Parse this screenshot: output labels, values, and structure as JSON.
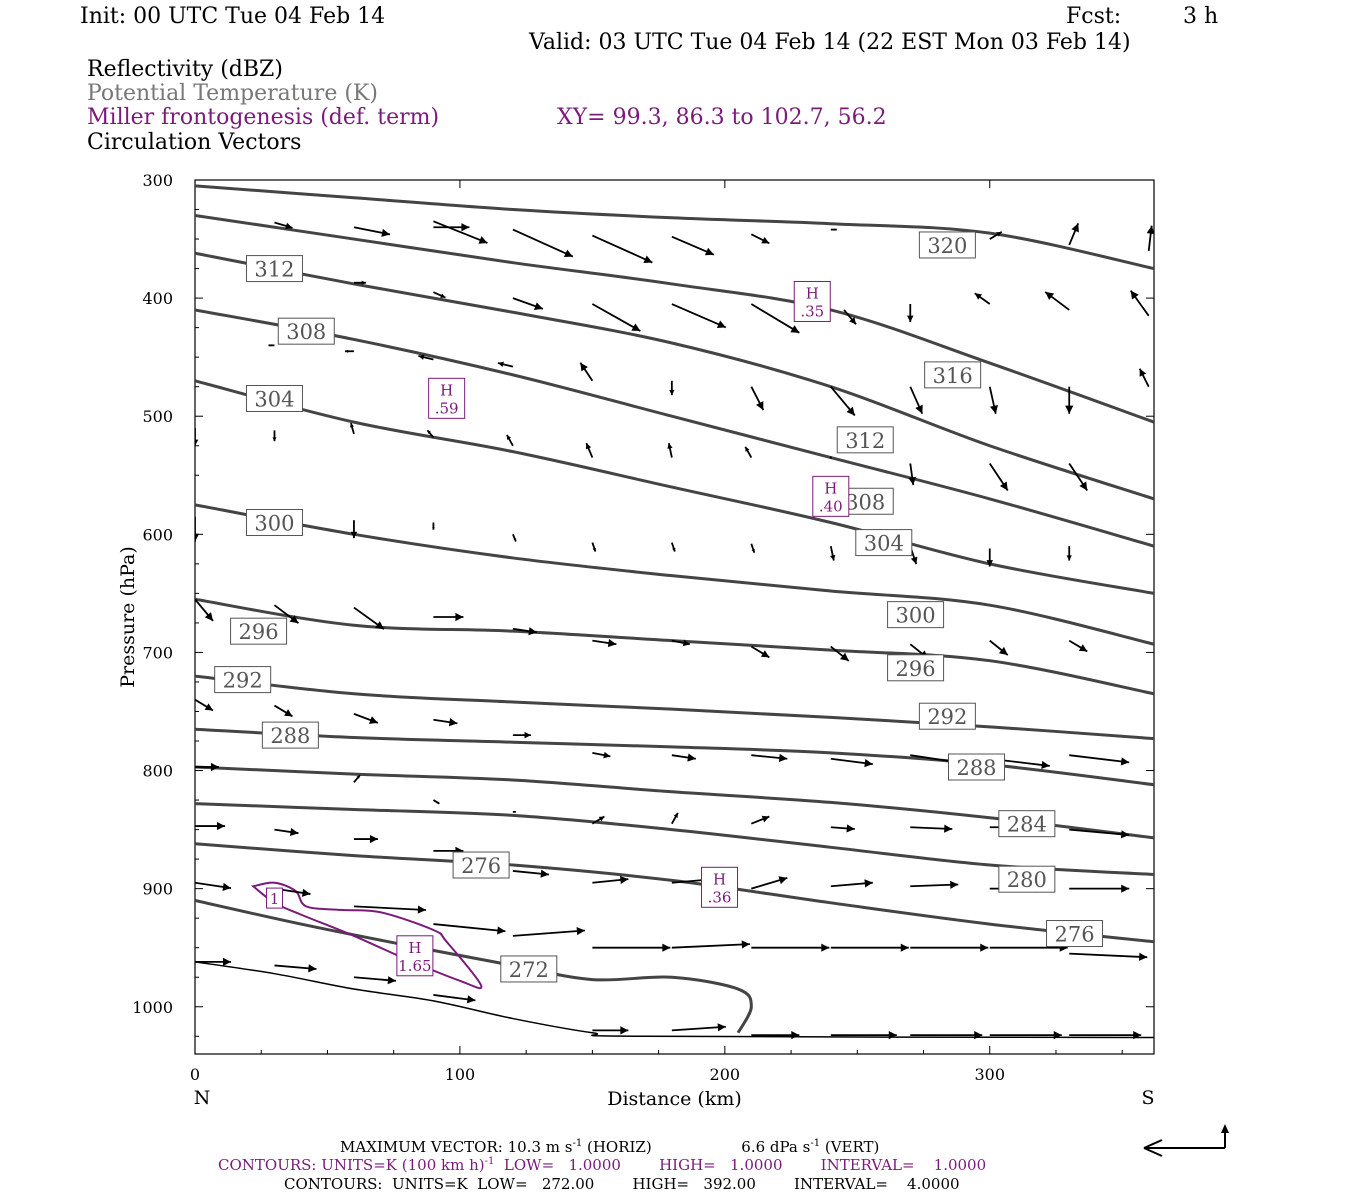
{
  "header": {
    "init": "Init: 00 UTC Tue 04 Feb 14",
    "fcst_label": "Fcst:",
    "fcst_value": "3 h",
    "valid": "Valid: 03 UTC Tue 04 Feb 14 (22 EST Mon 03 Feb 14)"
  },
  "fields": {
    "reflectivity": "Reflectivity (dBZ)",
    "theta": "Potential Temperature (K)",
    "frontogenesis": "Miller frontogenesis (def. term)",
    "xy": "XY=  99.3, 86.3 to 102.7, 56.2",
    "vectors": "Circulation Vectors"
  },
  "colors": {
    "theta": "#444444",
    "frontogenesis": "#7a1a7a",
    "vectors": "#000000",
    "theta_label": "#555555"
  },
  "footer": {
    "max_vector": "MAXIMUM VECTOR:  10.3 m s",
    "max_vector_h": " (HORIZ)",
    "max_vector_v": "6.6 dPa s",
    "max_vector_v2": " (VERT)",
    "contours1": "CONTOURS:  UNITS=K (100 km h)",
    "contours1b": "  LOW=   1.0000        HIGH=   1.0000        INTERVAL=    1.0000",
    "contours2": "CONTOURS:  UNITS=K  LOW=   272.00        HIGH=   392.00        INTERVAL=    4.0000",
    "sup": "-1"
  },
  "chart_data": {
    "type": "cross-section",
    "xlabel": "Distance (km)",
    "ylabel": "Pressure (hPa)",
    "xlim": [
      0,
      362
    ],
    "ylim": [
      1040,
      300
    ],
    "x_ticks": [
      0,
      100,
      200,
      300
    ],
    "y_ticks": [
      300,
      400,
      500,
      600,
      700,
      800,
      900,
      1000
    ],
    "left_end_label": "N",
    "right_end_label": "S",
    "theta_contours": [
      {
        "x": [
          0,
          60,
          120,
          180,
          240,
          300,
          362
        ],
        "p": [
          305,
          315,
          325,
          332,
          337,
          345,
          375
        ]
      },
      {
        "x": [
          0,
          60,
          120,
          180,
          240,
          300,
          362
        ],
        "p": [
          330,
          350,
          370,
          388,
          410,
          455,
          505
        ]
      },
      {
        "x": [
          0,
          60,
          120,
          180,
          240,
          300,
          362
        ],
        "p": [
          362,
          388,
          412,
          438,
          475,
          525,
          570
        ]
      },
      {
        "x": [
          0,
          60,
          120,
          180,
          240,
          300,
          362
        ],
        "p": [
          410,
          435,
          465,
          500,
          535,
          570,
          610
        ]
      },
      {
        "x": [
          0,
          60,
          120,
          180,
          240,
          300,
          362
        ],
        "p": [
          470,
          505,
          530,
          560,
          590,
          625,
          650
        ]
      },
      {
        "x": [
          0,
          60,
          120,
          180,
          240,
          300,
          362
        ],
        "p": [
          575,
          600,
          620,
          635,
          648,
          660,
          693
        ]
      },
      {
        "x": [
          0,
          60,
          120,
          180,
          240,
          300,
          362
        ],
        "p": [
          655,
          677,
          682,
          690,
          698,
          707,
          735
        ]
      },
      {
        "x": [
          0,
          60,
          120,
          180,
          240,
          300,
          362
        ],
        "p": [
          720,
          735,
          742,
          748,
          755,
          763,
          773
        ]
      },
      {
        "x": [
          0,
          60,
          120,
          180,
          240,
          300,
          362
        ],
        "p": [
          765,
          772,
          776,
          780,
          785,
          795,
          812
        ]
      },
      {
        "x": [
          0,
          60,
          120,
          180,
          240,
          300,
          362
        ],
        "p": [
          797,
          803,
          808,
          818,
          827,
          840,
          857
        ]
      },
      {
        "x": [
          0,
          60,
          120,
          180,
          240,
          300,
          362
        ],
        "p": [
          828,
          833,
          838,
          850,
          865,
          880,
          888
        ]
      },
      {
        "x": [
          0,
          60,
          120,
          180,
          240,
          300,
          362
        ],
        "p": [
          862,
          872,
          880,
          893,
          912,
          930,
          945
        ]
      },
      {
        "x": [
          0,
          40,
          80,
          120,
          150,
          180,
          205,
          210,
          205
        ],
        "p": [
          910,
          930,
          948,
          965,
          977,
          975,
          985,
          1000,
          1022
        ]
      }
    ],
    "theta_labels": [
      {
        "x": 284,
        "p": 355,
        "text": "320"
      },
      {
        "x": 30,
        "p": 375,
        "text": "312"
      },
      {
        "x": 286,
        "p": 465,
        "text": "316"
      },
      {
        "x": 42,
        "p": 428,
        "text": "308"
      },
      {
        "x": 30,
        "p": 485,
        "text": "304"
      },
      {
        "x": 253,
        "p": 520,
        "text": "312"
      },
      {
        "x": 253,
        "p": 572,
        "text": "308"
      },
      {
        "x": 30,
        "p": 590,
        "text": "300"
      },
      {
        "x": 260,
        "p": 607,
        "text": "304"
      },
      {
        "x": 272,
        "p": 668,
        "text": "300"
      },
      {
        "x": 24,
        "p": 682,
        "text": "296"
      },
      {
        "x": 272,
        "p": 713,
        "text": "296"
      },
      {
        "x": 18,
        "p": 723,
        "text": "292"
      },
      {
        "x": 284,
        "p": 754,
        "text": "292"
      },
      {
        "x": 36,
        "p": 770,
        "text": "288"
      },
      {
        "x": 295,
        "p": 797,
        "text": "288"
      },
      {
        "x": 314,
        "p": 845,
        "text": "284"
      },
      {
        "x": 108,
        "p": 880,
        "text": "276"
      },
      {
        "x": 314,
        "p": 892,
        "text": "280"
      },
      {
        "x": 332,
        "p": 938,
        "text": "276"
      },
      {
        "x": 126,
        "p": 968,
        "text": "272"
      }
    ],
    "frontogenesis_highs": [
      {
        "x": 233,
        "p": 402,
        "label": "H",
        "value": ".35"
      },
      {
        "x": 95,
        "p": 484,
        "label": "H",
        "value": ".59"
      },
      {
        "x": 240,
        "p": 567,
        "label": "H",
        "value": ".40"
      },
      {
        "x": 198,
        "p": 898,
        "label": "H",
        "value": ".36"
      },
      {
        "x": 83,
        "p": 956,
        "label": "H",
        "value": "1.65"
      }
    ],
    "frontogenesis_contour": {
      "x": [
        22,
        30,
        38,
        42,
        55,
        70,
        90,
        95,
        108,
        100,
        80,
        60,
        40,
        30,
        22
      ],
      "p": [
        898,
        895,
        902,
        915,
        918,
        920,
        935,
        945,
        982,
        978,
        960,
        940,
        922,
        912,
        898
      ],
      "label": "1",
      "label_x": 30,
      "label_p": 908
    },
    "surface": {
      "x": [
        0,
        30,
        60,
        90,
        120,
        150,
        170,
        362
      ],
      "p": [
        962,
        972,
        985,
        995,
        1010,
        1022,
        1025,
        1026
      ]
    },
    "vectors": [
      {
        "x": 30,
        "p": 336,
        "u": 6,
        "w": 0.3
      },
      {
        "x": 60,
        "p": 340,
        "u": 12,
        "w": 0.4
      },
      {
        "x": 90,
        "p": 340,
        "u": 12,
        "w": 0.0
      },
      {
        "x": 90,
        "p": 335,
        "u": 18,
        "w": 1.2
      },
      {
        "x": 120,
        "p": 342,
        "u": 20,
        "w": 1.5
      },
      {
        "x": 150,
        "p": 347,
        "u": 20,
        "w": 1.5
      },
      {
        "x": 180,
        "p": 348,
        "u": 14,
        "w": 1.0
      },
      {
        "x": 210,
        "p": 346,
        "u": 6,
        "w": 0.5
      },
      {
        "x": 240,
        "p": 342,
        "u": 2,
        "w": 0.0
      },
      {
        "x": 300,
        "p": 350,
        "u": 4,
        "w": -0.4
      },
      {
        "x": 330,
        "p": 355,
        "u": 3,
        "w": -1.2
      },
      {
        "x": 360,
        "p": 360,
        "u": 1,
        "w": -1.4
      },
      {
        "x": 30,
        "p": 385,
        "u": 2,
        "w": 0.0
      },
      {
        "x": 60,
        "p": 387,
        "u": 4,
        "w": 0.0
      },
      {
        "x": 90,
        "p": 395,
        "u": 4,
        "w": 0.3
      },
      {
        "x": 120,
        "p": 400,
        "u": 10,
        "w": 0.6
      },
      {
        "x": 150,
        "p": 405,
        "u": 16,
        "w": 1.5
      },
      {
        "x": 180,
        "p": 405,
        "u": 18,
        "w": 1.3
      },
      {
        "x": 210,
        "p": 405,
        "u": 16,
        "w": 1.6
      },
      {
        "x": 245,
        "p": 410,
        "u": 4,
        "w": 0.8
      },
      {
        "x": 270,
        "p": 405,
        "u": 0,
        "w": 1.0
      },
      {
        "x": 300,
        "p": 405,
        "u": -5,
        "w": -0.6
      },
      {
        "x": 330,
        "p": 410,
        "u": -8,
        "w": -1.0
      },
      {
        "x": 360,
        "p": 415,
        "u": -6,
        "w": -1.4
      },
      {
        "x": 30,
        "p": 440,
        "u": -2,
        "w": 0.0
      },
      {
        "x": 60,
        "p": 445,
        "u": -3,
        "w": 0.0
      },
      {
        "x": 90,
        "p": 452,
        "u": -5,
        "w": -0.2
      },
      {
        "x": 120,
        "p": 458,
        "u": -5,
        "w": -0.2
      },
      {
        "x": 150,
        "p": 470,
        "u": -4,
        "w": -1.0
      },
      {
        "x": 180,
        "p": 470,
        "u": 0,
        "w": 0.8
      },
      {
        "x": 210,
        "p": 475,
        "u": 4,
        "w": 1.3
      },
      {
        "x": 240,
        "p": 475,
        "u": 8,
        "w": 1.6
      },
      {
        "x": 270,
        "p": 475,
        "u": 4,
        "w": 1.5
      },
      {
        "x": 300,
        "p": 475,
        "u": 2,
        "w": 1.5
      },
      {
        "x": 330,
        "p": 475,
        "u": 0,
        "w": 1.5
      },
      {
        "x": 360,
        "p": 475,
        "u": -3,
        "w": -1.0
      },
      {
        "x": 0,
        "p": 510,
        "u": 0,
        "w": 1.0
      },
      {
        "x": 30,
        "p": 512,
        "u": 0,
        "w": 0.6
      },
      {
        "x": 60,
        "p": 515,
        "u": -1,
        "w": -0.6
      },
      {
        "x": 90,
        "p": 518,
        "u": -2,
        "w": -0.4
      },
      {
        "x": 120,
        "p": 525,
        "u": -2,
        "w": -0.6
      },
      {
        "x": 150,
        "p": 535,
        "u": -2,
        "w": -0.8
      },
      {
        "x": 180,
        "p": 535,
        "u": -1,
        "w": -0.8
      },
      {
        "x": 210,
        "p": 535,
        "u": -2,
        "w": -0.6
      },
      {
        "x": 240,
        "p": 535,
        "u": 0,
        "w": 0.0
      },
      {
        "x": 270,
        "p": 540,
        "u": 1,
        "w": 1.2
      },
      {
        "x": 300,
        "p": 540,
        "u": 6,
        "w": 1.5
      },
      {
        "x": 330,
        "p": 540,
        "u": 6,
        "w": 1.5
      },
      {
        "x": 0,
        "p": 585,
        "u": 0,
        "w": 1.4
      },
      {
        "x": 60,
        "p": 588,
        "u": 0,
        "w": 1.0
      },
      {
        "x": 90,
        "p": 590,
        "u": 0,
        "w": 0.4
      },
      {
        "x": 120,
        "p": 600,
        "u": 1,
        "w": 0.4
      },
      {
        "x": 150,
        "p": 607,
        "u": 1,
        "w": 0.5
      },
      {
        "x": 180,
        "p": 607,
        "u": 1,
        "w": 0.5
      },
      {
        "x": 210,
        "p": 608,
        "u": 1,
        "w": 0.5
      },
      {
        "x": 240,
        "p": 610,
        "u": 1,
        "w": 0.8
      },
      {
        "x": 270,
        "p": 610,
        "u": 2,
        "w": 1.0
      },
      {
        "x": 300,
        "p": 612,
        "u": 0,
        "w": 1.0
      },
      {
        "x": 330,
        "p": 610,
        "u": 0,
        "w": 0.8
      },
      {
        "x": 0,
        "p": 655,
        "u": 6,
        "w": 1.2
      },
      {
        "x": 30,
        "p": 660,
        "u": 8,
        "w": 1.0
      },
      {
        "x": 60,
        "p": 662,
        "u": 10,
        "w": 1.2
      },
      {
        "x": 90,
        "p": 670,
        "u": 10,
        "w": 0.0
      },
      {
        "x": 120,
        "p": 680,
        "u": 8,
        "w": 0.2
      },
      {
        "x": 150,
        "p": 690,
        "u": 8,
        "w": 0.2
      },
      {
        "x": 180,
        "p": 690,
        "u": 6,
        "w": 0.2
      },
      {
        "x": 210,
        "p": 695,
        "u": 6,
        "w": 0.6
      },
      {
        "x": 240,
        "p": 695,
        "u": 6,
        "w": 0.8
      },
      {
        "x": 270,
        "p": 693,
        "u": 6,
        "w": 0.8
      },
      {
        "x": 300,
        "p": 690,
        "u": 6,
        "w": 0.8
      },
      {
        "x": 330,
        "p": 690,
        "u": 6,
        "w": 0.6
      },
      {
        "x": 0,
        "p": 740,
        "u": 6,
        "w": 0.6
      },
      {
        "x": 30,
        "p": 745,
        "u": 6,
        "w": 0.6
      },
      {
        "x": 60,
        "p": 752,
        "u": 8,
        "w": 0.5
      },
      {
        "x": 90,
        "p": 757,
        "u": 8,
        "w": 0.2
      },
      {
        "x": 120,
        "p": 770,
        "u": 6,
        "w": 0.0
      },
      {
        "x": 150,
        "p": 785,
        "u": 6,
        "w": 0.2
      },
      {
        "x": 180,
        "p": 787,
        "u": 8,
        "w": 0.2
      },
      {
        "x": 210,
        "p": 787,
        "u": 12,
        "w": 0.2
      },
      {
        "x": 240,
        "p": 790,
        "u": 14,
        "w": 0.3
      },
      {
        "x": 270,
        "p": 787,
        "u": 16,
        "w": 0.4
      },
      {
        "x": 300,
        "p": 790,
        "u": 20,
        "w": 0.4
      },
      {
        "x": 330,
        "p": 787,
        "u": 20,
        "w": 0.4
      },
      {
        "x": 0,
        "p": 797,
        "u": 8,
        "w": 0.0
      },
      {
        "x": 60,
        "p": 810,
        "u": 2,
        "w": -0.4
      },
      {
        "x": 90,
        "p": 825,
        "u": 2,
        "w": 0.2
      },
      {
        "x": 120,
        "p": 835,
        "u": 1,
        "w": 0.0
      },
      {
        "x": 150,
        "p": 845,
        "u": 4,
        "w": -0.4
      },
      {
        "x": 180,
        "p": 845,
        "u": 2,
        "w": -0.6
      },
      {
        "x": 210,
        "p": 845,
        "u": 6,
        "w": -0.4
      },
      {
        "x": 240,
        "p": 848,
        "u": 8,
        "w": 0.1
      },
      {
        "x": 270,
        "p": 848,
        "u": 14,
        "w": 0.1
      },
      {
        "x": 300,
        "p": 848,
        "u": 14,
        "w": 0.0
      },
      {
        "x": 330,
        "p": 850,
        "u": 20,
        "w": 0.3
      },
      {
        "x": 0,
        "p": 847,
        "u": 10,
        "w": 0.0
      },
      {
        "x": 30,
        "p": 850,
        "u": 8,
        "w": 0.2
      },
      {
        "x": 60,
        "p": 858,
        "u": 8,
        "w": 0.0
      },
      {
        "x": 90,
        "p": 868,
        "u": 10,
        "w": 0.0
      },
      {
        "x": 120,
        "p": 885,
        "u": 12,
        "w": 0.2
      },
      {
        "x": 150,
        "p": 895,
        "u": 12,
        "w": -0.2
      },
      {
        "x": 180,
        "p": 895,
        "u": 14,
        "w": -0.2
      },
      {
        "x": 210,
        "p": 900,
        "u": 12,
        "w": -0.6
      },
      {
        "x": 240,
        "p": 898,
        "u": 14,
        "w": -0.2
      },
      {
        "x": 270,
        "p": 898,
        "u": 16,
        "w": -0.1
      },
      {
        "x": 300,
        "p": 900,
        "u": 18,
        "w": 0.0
      },
      {
        "x": 330,
        "p": 900,
        "u": 20,
        "w": 0.0
      },
      {
        "x": 0,
        "p": 895,
        "u": 12,
        "w": 0.3
      },
      {
        "x": 30,
        "p": 900,
        "u": 12,
        "w": 0.3
      },
      {
        "x": 60,
        "p": 915,
        "u": 24,
        "w": 0.2
      },
      {
        "x": 90,
        "p": 930,
        "u": 24,
        "w": 0.4
      },
      {
        "x": 120,
        "p": 940,
        "u": 24,
        "w": -0.3
      },
      {
        "x": 150,
        "p": 950,
        "u": 26,
        "w": 0.0
      },
      {
        "x": 180,
        "p": 950,
        "u": 26,
        "w": -0.2
      },
      {
        "x": 210,
        "p": 950,
        "u": 26,
        "w": 0.0
      },
      {
        "x": 240,
        "p": 950,
        "u": 26,
        "w": 0.0
      },
      {
        "x": 270,
        "p": 950,
        "u": 26,
        "w": 0.0
      },
      {
        "x": 300,
        "p": 950,
        "u": 26,
        "w": 0.0
      },
      {
        "x": 330,
        "p": 955,
        "u": 26,
        "w": 0.2
      },
      {
        "x": 0,
        "p": 962,
        "u": 12,
        "w": 0.0
      },
      {
        "x": 30,
        "p": 965,
        "u": 14,
        "w": 0.2
      },
      {
        "x": 60,
        "p": 975,
        "u": 14,
        "w": 0.2
      },
      {
        "x": 90,
        "p": 990,
        "u": 14,
        "w": 0.3
      },
      {
        "x": 150,
        "p": 1020,
        "u": 12,
        "w": 0.0
      },
      {
        "x": 180,
        "p": 1020,
        "u": 18,
        "w": -0.2
      },
      {
        "x": 210,
        "p": 1024,
        "u": 16,
        "w": 0.0
      },
      {
        "x": 240,
        "p": 1024,
        "u": 22,
        "w": 0.0
      },
      {
        "x": 270,
        "p": 1024,
        "u": 24,
        "w": 0.0
      },
      {
        "x": 300,
        "p": 1024,
        "u": 24,
        "w": 0.0
      },
      {
        "x": 330,
        "p": 1024,
        "u": 24,
        "w": 0.0
      }
    ]
  }
}
